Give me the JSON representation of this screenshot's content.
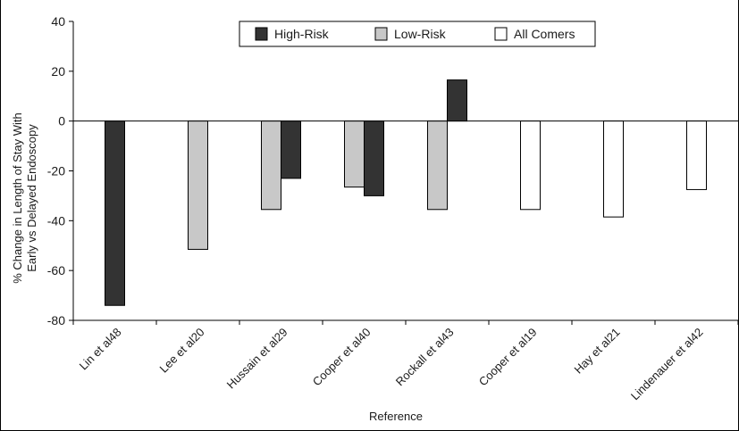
{
  "chart_data": {
    "type": "bar",
    "title": "",
    "xlabel": "Reference",
    "ylabel_lines": [
      "% Change in Length of Stay With",
      "Early vs Delayed Endoscopy"
    ],
    "ylim": [
      -80,
      40
    ],
    "yticks": [
      40,
      20,
      0,
      -20,
      -40,
      -60,
      -80
    ],
    "categories": [
      "Lin et al48",
      "Lee et al20",
      "Hussain et al29",
      "Cooper et al40",
      "Rockall et al43",
      "Cooper et al19",
      "Hay et al21",
      "Lindenauer et al42"
    ],
    "series": [
      {
        "name": "Low-Risk",
        "color": "#c8c8c8",
        "values": [
          null,
          -51.5,
          -35.5,
          -26.5,
          -35.5,
          null,
          null,
          null
        ]
      },
      {
        "name": "High-Risk",
        "color": "#333333",
        "values": [
          -74,
          null,
          -23,
          -30,
          16.5,
          null,
          null,
          null
        ]
      },
      {
        "name": "All Comers",
        "color": "#ffffff",
        "values": [
          null,
          null,
          null,
          null,
          null,
          -35.5,
          -38.5,
          -27.5
        ]
      }
    ],
    "legend": {
      "position": "top-center",
      "order": [
        "High-Risk",
        "Low-Risk",
        "All Comers"
      ]
    }
  }
}
